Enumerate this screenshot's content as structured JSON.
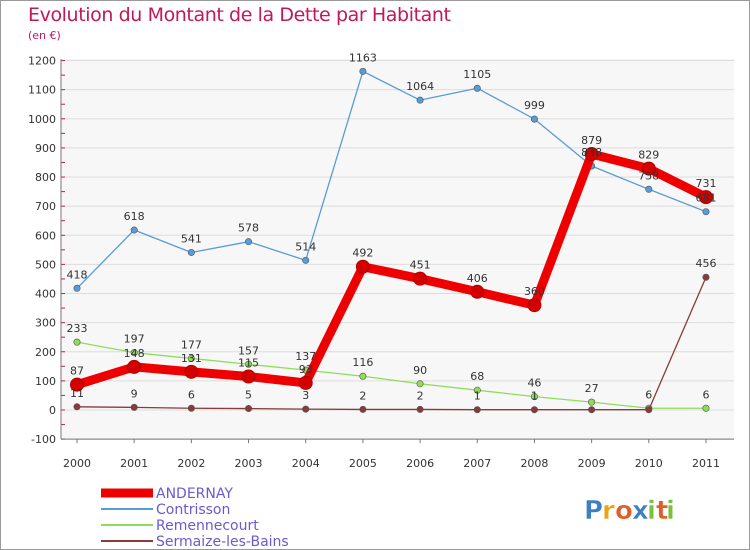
{
  "chart_data": {
    "type": "line",
    "title": "Evolution du Montant de la Dette par Habitant",
    "subtitle": "(en €)",
    "xlabel": "",
    "ylabel": "",
    "x": [
      "2000",
      "2001",
      "2002",
      "2003",
      "2004",
      "2005",
      "2006",
      "2007",
      "2008",
      "2009",
      "2010",
      "2011"
    ],
    "ylim": [
      -100,
      1200
    ],
    "yticks": [
      -100,
      0,
      100,
      200,
      300,
      400,
      500,
      600,
      700,
      800,
      900,
      1000,
      1100,
      1200
    ],
    "grid": true,
    "legend_position": "bottom-left",
    "series": [
      {
        "name": "ANDERNAY",
        "color": "#ee0000",
        "emphasis": true,
        "values": [
          87,
          148,
          131,
          115,
          93,
          492,
          451,
          406,
          360,
          879,
          829,
          731
        ],
        "labels": [
          "87",
          "148",
          "131",
          "115",
          "93",
          "492",
          "451",
          "406",
          "360",
          "879",
          "829",
          "731"
        ]
      },
      {
        "name": "Contrisson",
        "color": "#5a9bd5",
        "values": [
          418,
          618,
          541,
          578,
          514,
          1163,
          1064,
          1105,
          999,
          838,
          758,
          681
        ],
        "labels": [
          "418",
          "618",
          "541",
          "578",
          "514",
          "1163",
          "1064",
          "1105",
          "999",
          "838",
          "758",
          "681"
        ]
      },
      {
        "name": "Remennecourt",
        "color": "#8fdc5a",
        "values": [
          233,
          197,
          177,
          157,
          137,
          116,
          90,
          68,
          46,
          27,
          6,
          6
        ],
        "labels": [
          "233",
          "197",
          "177",
          "157",
          "137",
          "116",
          "90",
          "68",
          "46",
          "27",
          "6",
          "6"
        ]
      },
      {
        "name": "Sermaize-les-Bains",
        "color": "#8b3a3a",
        "values": [
          11,
          9,
          6,
          5,
          3,
          2,
          2,
          1,
          1,
          1,
          1,
          456
        ],
        "labels": [
          "11",
          "9",
          "6",
          "5",
          "3",
          "2",
          "2",
          "1",
          "1",
          "",
          "",
          "456"
        ]
      }
    ]
  },
  "brand": {
    "text": "Proxiti",
    "letter_colors": [
      "#3b7fc4",
      "#e8a317",
      "#e35d2a",
      "#3b7fc4",
      "#7cbf3f",
      "#e35d2a",
      "#7cbf3f"
    ]
  }
}
